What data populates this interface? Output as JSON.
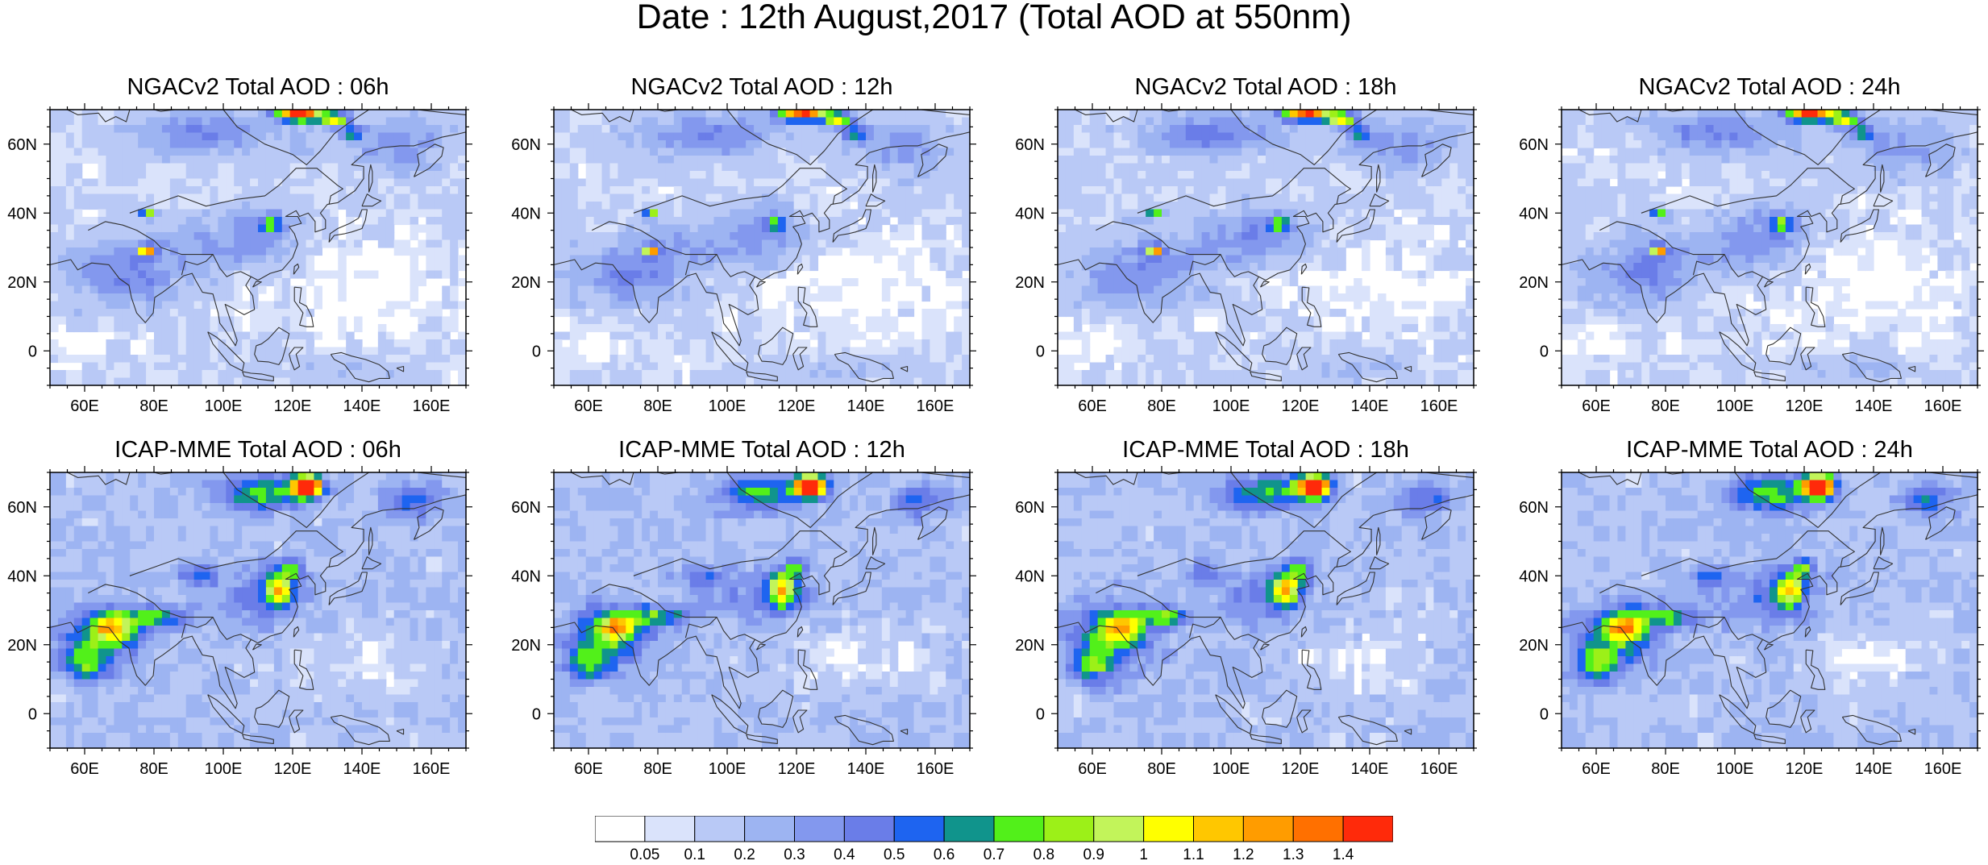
{
  "figure": {
    "title": "Date : 12th August,2017 (Total AOD at 550nm)"
  },
  "map": {
    "lon_range": [
      50,
      170
    ],
    "lat_range": [
      -10,
      70
    ],
    "lon_ticks": [
      60,
      80,
      100,
      120,
      140,
      160
    ],
    "lon_tick_labels": [
      "60E",
      "80E",
      "100E",
      "120E",
      "140E",
      "160E"
    ],
    "lat_ticks": [
      0,
      20,
      40,
      60
    ],
    "lat_tick_labels": [
      "0",
      "20N",
      "40N",
      "60N"
    ],
    "coastline_color": "#333333"
  },
  "panels": [
    {
      "title": "NGACv2 Total AOD : 06h",
      "model": "NGACv2",
      "hour": "06h"
    },
    {
      "title": "NGACv2 Total AOD : 12h",
      "model": "NGACv2",
      "hour": "12h"
    },
    {
      "title": "NGACv2 Total AOD : 18h",
      "model": "NGACv2",
      "hour": "18h"
    },
    {
      "title": "NGACv2 Total AOD : 24h",
      "model": "NGACv2",
      "hour": "24h"
    },
    {
      "title": "ICAP-MME Total AOD : 06h",
      "model": "ICAP-MME",
      "hour": "06h"
    },
    {
      "title": "ICAP-MME Total AOD : 12h",
      "model": "ICAP-MME",
      "hour": "12h"
    },
    {
      "title": "ICAP-MME Total AOD : 18h",
      "model": "ICAP-MME",
      "hour": "18h"
    },
    {
      "title": "ICAP-MME Total AOD : 24h",
      "model": "ICAP-MME",
      "hour": "24h"
    }
  ],
  "colorbar": {
    "labels": [
      "0.05",
      "0.1",
      "0.2",
      "0.3",
      "0.4",
      "0.5",
      "0.6",
      "0.7",
      "0.8",
      "0.9",
      "1",
      "1.1",
      "1.2",
      "1.3",
      "1.4"
    ],
    "colors": [
      "#ffffff",
      "#dae3fb",
      "#b9c9f6",
      "#9db4f2",
      "#8398ee",
      "#6a7de8",
      "#1e64f0",
      "#10948c",
      "#52f01a",
      "#9cf018",
      "#c2f45a",
      "#ffff00",
      "#ffc700",
      "#ff9c00",
      "#ff7000",
      "#ff2a0a"
    ]
  }
}
